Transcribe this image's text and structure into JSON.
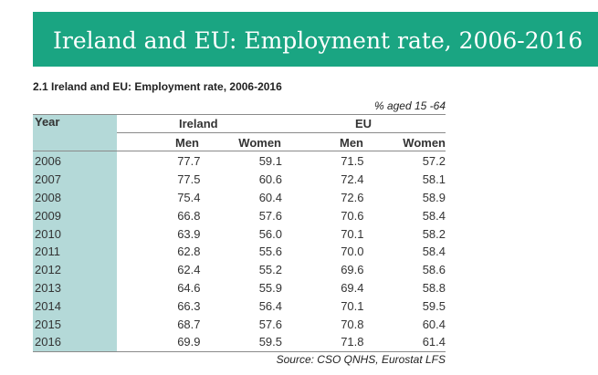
{
  "banner": {
    "title": "Ireland and EU: Employment rate, 2006-2016"
  },
  "table": {
    "title": "2.1  Ireland and EU: Employment rate, 2006-2016",
    "units": "% aged 15 -64",
    "year_header": "Year",
    "group_headers": [
      "Ireland",
      "EU"
    ],
    "sub_headers": [
      "Men",
      "Women",
      "Men",
      "Women"
    ],
    "rows": [
      [
        "2006",
        "77.7",
        "59.1",
        "71.5",
        "57.2"
      ],
      [
        "2007",
        "77.5",
        "60.6",
        "72.4",
        "58.1"
      ],
      [
        "2008",
        "75.4",
        "60.4",
        "72.6",
        "58.9"
      ],
      [
        "2009",
        "66.8",
        "57.6",
        "70.6",
        "58.4"
      ],
      [
        "2010",
        "63.9",
        "56.0",
        "70.1",
        "58.2"
      ],
      [
        "2011",
        "62.8",
        "55.6",
        "70.0",
        "58.4"
      ],
      [
        "2012",
        "62.4",
        "55.2",
        "69.6",
        "58.6"
      ],
      [
        "2013",
        "64.6",
        "55.9",
        "69.4",
        "58.8"
      ],
      [
        "2014",
        "66.3",
        "56.4",
        "70.1",
        "59.5"
      ],
      [
        "2015",
        "68.7",
        "57.6",
        "70.8",
        "60.4"
      ],
      [
        "2016",
        "69.9",
        "59.5",
        "71.8",
        "61.4"
      ]
    ],
    "source": "Source: CSO QNHS, Eurostat LFS"
  },
  "colors": {
    "banner": "#1aa582",
    "year_column": "#b4d9d8"
  }
}
